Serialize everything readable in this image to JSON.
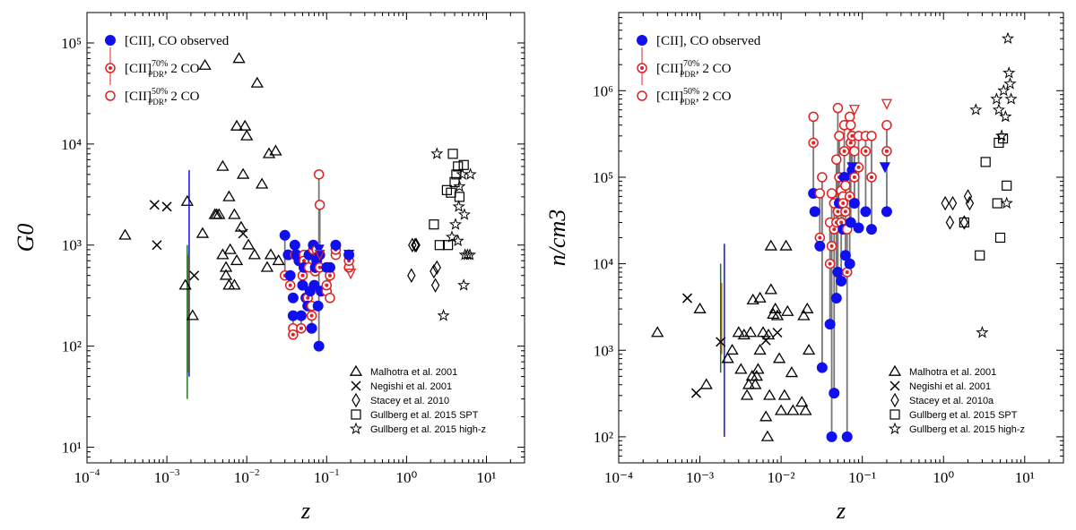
{
  "colors": {
    "observed": "#1010ee",
    "pdr70": "#e02020",
    "pdr50": "#e02020",
    "connector": "#777777",
    "green": "#1a7a1a",
    "olive": "#8a6a10",
    "blue": "#1010ee"
  },
  "chart_data": [
    {
      "type": "scatter",
      "id": "left",
      "xlabel": "z",
      "ylabel": "G0",
      "xscale": "log",
      "yscale": "log",
      "xlim": [
        0.0001,
        30
      ],
      "ylim": [
        7,
        200000
      ],
      "x_tick_labels": [
        "10",
        "10",
        "10",
        "10",
        "10⁰",
        "10¹"
      ],
      "x_tick_label_suffixes": [
        "−4",
        "−3",
        "−2",
        "−1",
        "",
        ""
      ],
      "y_tick_labels": [
        "10¹",
        "10²",
        "10³",
        "10⁴",
        "10⁵"
      ],
      "legend_top": [
        {
          "label": "[CII], CO observed",
          "marker": "filled-circle",
          "color": "#1010ee"
        },
        {
          "label": "[CII]70%PDR, 2 CO",
          "marker": "dotted-circle",
          "color": "#e02020"
        },
        {
          "label": "[CII]50%PDR, 2 CO",
          "marker": "open-circle",
          "color": "#e02020"
        }
      ],
      "legend_bottom": [
        {
          "label": "Malhotra et al. 2001",
          "marker": "triangle"
        },
        {
          "label": "Negishi et al. 2001",
          "marker": "x"
        },
        {
          "label": "Stacey et al. 2010",
          "marker": "diamond"
        },
        {
          "label": "Gullberg et al. 2015 SPT",
          "marker": "square"
        },
        {
          "label": "Gullberg et al. 2015 high-z",
          "marker": "star"
        }
      ],
      "series": {
        "malhotra": [
          [
            0.0003,
            1250
          ],
          [
            0.0018,
            2700
          ],
          [
            0.0021,
            200
          ],
          [
            0.0017,
            400
          ],
          [
            0.0028,
            1300
          ],
          [
            0.003,
            60000
          ],
          [
            0.004,
            2000
          ],
          [
            0.0042,
            2000
          ],
          [
            0.0045,
            2000
          ],
          [
            0.005,
            800
          ],
          [
            0.005,
            6000
          ],
          [
            0.0055,
            500
          ],
          [
            0.0055,
            600
          ],
          [
            0.006,
            3000
          ],
          [
            0.006,
            400
          ],
          [
            0.0062,
            900
          ],
          [
            0.007,
            2000
          ],
          [
            0.007,
            400
          ],
          [
            0.0075,
            15000
          ],
          [
            0.0075,
            700
          ],
          [
            0.008,
            70000
          ],
          [
            0.0085,
            1500
          ],
          [
            0.009,
            5000
          ],
          [
            0.0095,
            15000
          ],
          [
            0.01,
            12000
          ],
          [
            0.0105,
            1000
          ],
          [
            0.0125,
            800
          ],
          [
            0.0135,
            40000
          ],
          [
            0.0155,
            4000
          ],
          [
            0.018,
            600
          ],
          [
            0.019,
            8000
          ],
          [
            0.02,
            800
          ],
          [
            0.023,
            8500
          ],
          [
            0.025,
            700
          ]
        ],
        "negishi": [
          [
            0.0007,
            2500
          ],
          [
            0.00075,
            1000
          ],
          [
            0.001,
            2400
          ],
          [
            0.0022,
            500
          ],
          [
            0.009,
            1300
          ]
        ],
        "stacey": [
          [
            1.15,
            500
          ],
          [
            1.18,
            1000
          ],
          [
            1.28,
            1000
          ],
          [
            1.32,
            1000
          ],
          [
            2.2,
            550
          ],
          [
            2.3,
            400
          ],
          [
            2.4,
            600
          ]
        ],
        "spt": [
          [
            2.2,
            1600
          ],
          [
            2.6,
            1000
          ],
          [
            3.2,
            3500
          ],
          [
            3.6,
            3300
          ],
          [
            3.8,
            8000
          ],
          [
            4.0,
            4200
          ],
          [
            4.2,
            5000
          ],
          [
            4.4,
            6000
          ],
          [
            4.6,
            3000
          ],
          [
            5.2,
            6200
          ],
          [
            3.3,
            1000
          ]
        ],
        "highz": [
          [
            2.4,
            8000
          ],
          [
            2.9,
            200
          ],
          [
            3.7,
            1200
          ],
          [
            4.1,
            1600
          ],
          [
            4.4,
            1100
          ],
          [
            4.5,
            2400
          ],
          [
            4.6,
            3800
          ],
          [
            5.0,
            5000
          ],
          [
            5.3,
            2000
          ],
          [
            5.4,
            800
          ],
          [
            5.8,
            800
          ],
          [
            5.2,
            400
          ],
          [
            6.2,
            800
          ],
          [
            6.3,
            5000
          ]
        ],
        "pairs": [
          {
            "x": 0.03,
            "o": 1250,
            "p70": 500,
            "p50": null
          },
          {
            "x": 0.033,
            "o": 800,
            "p70": null,
            "p50": null
          },
          {
            "x": 0.035,
            "o": 500,
            "p70": 400,
            "p50": 500
          },
          {
            "x": 0.038,
            "o": 200,
            "p70": 130,
            "p50": 150
          },
          {
            "x": 0.038,
            "o": 300,
            "p70": null,
            "p50": null
          },
          {
            "x": 0.04,
            "o": 1000,
            "p70": 800,
            "p50": null
          },
          {
            "x": 0.042,
            "o": 800,
            "p70": null,
            "p50": null
          },
          {
            "x": 0.045,
            "o": 700,
            "p70": null,
            "p50": null
          },
          {
            "x": 0.048,
            "o": 200,
            "p70": 150,
            "p50": null
          },
          {
            "x": 0.05,
            "o": 400,
            "p70": 500,
            "p50": null
          },
          {
            "x": 0.052,
            "o": 600,
            "p70": 700,
            "p50": 800
          },
          {
            "x": 0.055,
            "o": 300,
            "p70": null,
            "p50": null
          },
          {
            "x": 0.058,
            "o": 250,
            "p70": 300,
            "p50": null
          },
          {
            "x": 0.06,
            "o": 800,
            "p70": null,
            "p50": 600
          },
          {
            "x": 0.062,
            "o": 350,
            "p70": null,
            "p50": null
          },
          {
            "x": 0.065,
            "o": 150,
            "p70": 200,
            "p50": 250
          },
          {
            "x": 0.068,
            "o": 1000,
            "p70": 900,
            "p50": null
          },
          {
            "x": 0.07,
            "o": 400,
            "p70": null,
            "p50": null
          },
          {
            "x": 0.072,
            "o": 600,
            "p70": 550,
            "p50": null
          },
          {
            "x": 0.075,
            "o": 700,
            "p70": null,
            "p50": 900
          },
          {
            "x": 0.078,
            "o": 250,
            "p70": null,
            "p50": null
          },
          {
            "x": 0.08,
            "o": 100,
            "p70": null,
            "p50": 5000
          },
          {
            "x": 0.082,
            "o": 800,
            "p70": 600,
            "p50": 2500
          },
          {
            "x": 0.085,
            "o": 350,
            "p70": null,
            "p50": null
          },
          {
            "x": 0.1,
            "o": 600,
            "p70": 400,
            "p50": 350
          },
          {
            "x": 0.11,
            "o": 600,
            "p70": 500,
            "p50": 300
          },
          {
            "x": 0.13,
            "o": 1000,
            "p70": 900,
            "p50": 800
          },
          {
            "x": 0.19,
            "o": 800,
            "p70": 700,
            "p50": 600
          }
        ],
        "upper_limits": [
          [
            0.08,
            900,
            "blue"
          ],
          [
            0.082,
            800,
            "red"
          ],
          [
            0.19,
            800,
            "blue"
          ],
          [
            0.2,
            520,
            "red"
          ]
        ],
        "error_bars": [
          {
            "x": 0.0019,
            "lo": 50,
            "hi": 5500,
            "color": "blue"
          },
          {
            "x": 0.0018,
            "lo": 30,
            "hi": 1000,
            "color": "green"
          },
          {
            "x": 0.00185,
            "lo": 55,
            "hi": 800,
            "color": "olive"
          }
        ]
      }
    },
    {
      "type": "scatter",
      "id": "right",
      "xlabel": "z",
      "ylabel": "n/cm3",
      "xscale": "log",
      "yscale": "log",
      "xlim": [
        0.0001,
        30
      ],
      "ylim": [
        50,
        8000000
      ],
      "x_tick_labels": [
        "10⁻⁴",
        "10⁻³",
        "10⁻²",
        "10⁻¹",
        "10⁰",
        "10¹"
      ],
      "y_tick_labels": [
        "10²",
        "10³",
        "10⁴",
        "10⁵",
        "10⁶"
      ],
      "legend_top": [
        {
          "label": "[CII], CO observed",
          "marker": "filled-circle",
          "color": "#1010ee"
        },
        {
          "label": "[CII]70%PDR, 2 CO",
          "marker": "dotted-circle",
          "color": "#e02020"
        },
        {
          "label": "[CII]50%PDR, 2 CO",
          "marker": "open-circle",
          "color": "#e02020"
        }
      ],
      "legend_bottom": [
        {
          "label": "Malhotra et al. 2001",
          "marker": "triangle"
        },
        {
          "label": "Negishi et al. 2001",
          "marker": "x"
        },
        {
          "label": "Stacey et al. 2010a",
          "marker": "diamond"
        },
        {
          "label": "Gullberg et al. 2015 SPT",
          "marker": "square"
        },
        {
          "label": "Gullberg et al. 2015 high-z",
          "marker": "star"
        }
      ],
      "series": {
        "malhotra": [
          [
            0.0003,
            1600
          ],
          [
            0.001,
            3000
          ],
          [
            0.0012,
            400
          ],
          [
            0.0022,
            800
          ],
          [
            0.0025,
            1000
          ],
          [
            0.003,
            1600
          ],
          [
            0.0032,
            600
          ],
          [
            0.0035,
            1500
          ],
          [
            0.0038,
            300
          ],
          [
            0.004,
            400
          ],
          [
            0.0042,
            1600
          ],
          [
            0.0044,
            500
          ],
          [
            0.0045,
            3800
          ],
          [
            0.0048,
            400
          ],
          [
            0.005,
            500
          ],
          [
            0.0052,
            600
          ],
          [
            0.0055,
            1000
          ],
          [
            0.0055,
            4000
          ],
          [
            0.006,
            1600
          ],
          [
            0.0065,
            170
          ],
          [
            0.0068,
            100
          ],
          [
            0.007,
            1500
          ],
          [
            0.0072,
            300
          ],
          [
            0.0075,
            5000
          ],
          [
            0.0075,
            16000
          ],
          [
            0.008,
            2600
          ],
          [
            0.0085,
            3000
          ],
          [
            0.009,
            2500
          ],
          [
            0.0095,
            800
          ],
          [
            0.01,
            200
          ],
          [
            0.011,
            300
          ],
          [
            0.0115,
            16000
          ],
          [
            0.012,
            2800
          ],
          [
            0.0135,
            550
          ],
          [
            0.014,
            200
          ],
          [
            0.018,
            250
          ],
          [
            0.019,
            2500
          ],
          [
            0.02,
            200
          ],
          [
            0.021,
            3000
          ],
          [
            0.022,
            1000
          ]
        ],
        "negishi": [
          [
            0.0007,
            4000
          ],
          [
            0.0009,
            320
          ],
          [
            0.0018,
            1250
          ],
          [
            0.0065,
            1300
          ],
          [
            0.009,
            1600
          ]
        ],
        "stacey": [
          [
            1.05,
            50000
          ],
          [
            1.2,
            30000
          ],
          [
            1.3,
            50000
          ],
          [
            1.8,
            30000
          ],
          [
            2.0,
            60000
          ],
          [
            2.1,
            50000
          ]
        ],
        "spt": [
          [
            1.8,
            30000
          ],
          [
            2.8,
            12500
          ],
          [
            3.3,
            150000
          ],
          [
            4.6,
            50000
          ],
          [
            4.8,
            250000
          ],
          [
            5.0,
            20000
          ],
          [
            5.4,
            280000
          ],
          [
            6.0,
            80000
          ]
        ],
        "highz": [
          [
            2.5,
            600000
          ],
          [
            3.0,
            1600
          ],
          [
            4.5,
            800000
          ],
          [
            4.8,
            600000
          ],
          [
            5.2,
            300000
          ],
          [
            5.5,
            1000000
          ],
          [
            5.8,
            500000
          ],
          [
            6.0,
            50000
          ],
          [
            6.2,
            4000000
          ],
          [
            6.4,
            1600000
          ],
          [
            6.6,
            1200000
          ],
          [
            6.8,
            800000
          ]
        ],
        "pairs": [
          {
            "x": 0.025,
            "o": 65000,
            "p70": 250000,
            "p50": 500000
          },
          {
            "x": 0.026,
            "o": 40000,
            "p70": null,
            "p50": null
          },
          {
            "x": 0.03,
            "o": 16000,
            "p70": 20000,
            "p50": 65000
          },
          {
            "x": 0.032,
            "o": 630,
            "p70": null,
            "p50": 100000
          },
          {
            "x": 0.04,
            "o": 2000,
            "p70": 10000,
            "p50": 30000
          },
          {
            "x": 0.042,
            "o": 100,
            "p70": 16000,
            "p50": 65000
          },
          {
            "x": 0.045,
            "o": 320,
            "p70": 25000,
            "p50": 50000
          },
          {
            "x": 0.048,
            "o": 4000,
            "p70": 30000,
            "p50": 160000
          },
          {
            "x": 0.05,
            "o": 8000,
            "p70": 40000,
            "p50": 630000
          },
          {
            "x": 0.052,
            "o": 50000,
            "p70": 100000,
            "p50": 300000
          },
          {
            "x": 0.055,
            "o": 6300,
            "p70": 30000,
            "p50": 70000
          },
          {
            "x": 0.058,
            "o": 25000,
            "p70": 50000,
            "p50": 60000
          },
          {
            "x": 0.06,
            "o": 100000,
            "p70": 200000,
            "p50": 400000
          },
          {
            "x": 0.062,
            "o": 12500,
            "p70": 40000,
            "p50": 80000
          },
          {
            "x": 0.065,
            "o": 100,
            "p70": 8000,
            "p50": 25000
          },
          {
            "x": 0.07,
            "o": 10000,
            "p70": 60000,
            "p50": 500000
          },
          {
            "x": 0.072,
            "o": 30000,
            "p70": 250000,
            "p50": 400000
          },
          {
            "x": 0.075,
            "o": 120000,
            "p70": 300000,
            "p50": 300000
          },
          {
            "x": 0.08,
            "o": 50000,
            "p70": 100000,
            "p50": 200000
          },
          {
            "x": 0.09,
            "o": 26000,
            "p70": 130000,
            "p50": 300000
          },
          {
            "x": 0.11,
            "o": 40000,
            "p70": 200000,
            "p50": 300000
          },
          {
            "x": 0.13,
            "o": 25000,
            "p70": 100000,
            "p50": 300000
          },
          {
            "x": 0.2,
            "o": 40000,
            "p70": 200000,
            "p50": 400000
          }
        ],
        "upper_limits": [
          [
            0.075,
            130000,
            "blue"
          ],
          [
            0.08,
            600000,
            "red"
          ],
          [
            0.19,
            130000,
            "blue"
          ],
          [
            0.2,
            700000,
            "red"
          ]
        ],
        "error_bars": [
          {
            "x": 0.002,
            "lo": 100,
            "hi": 17000,
            "color": "blue"
          },
          {
            "x": 0.0018,
            "lo": 550,
            "hi": 10000,
            "color": "green"
          },
          {
            "x": 0.00185,
            "lo": 900,
            "hi": 6000,
            "color": "olive"
          }
        ]
      }
    }
  ]
}
